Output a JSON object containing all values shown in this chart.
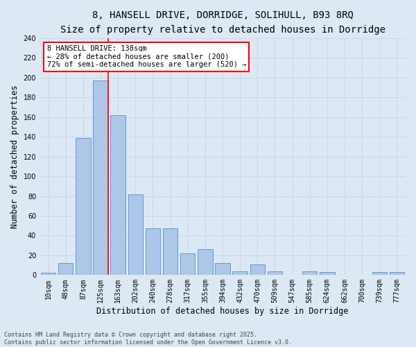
{
  "title1": "8, HANSELL DRIVE, DORRIDGE, SOLIHULL, B93 8RQ",
  "title2": "Size of property relative to detached houses in Dorridge",
  "xlabel": "Distribution of detached houses by size in Dorridge",
  "ylabel": "Number of detached properties",
  "categories": [
    "10sqm",
    "48sqm",
    "87sqm",
    "125sqm",
    "163sqm",
    "202sqm",
    "240sqm",
    "278sqm",
    "317sqm",
    "355sqm",
    "394sqm",
    "432sqm",
    "470sqm",
    "509sqm",
    "547sqm",
    "585sqm",
    "624sqm",
    "662sqm",
    "700sqm",
    "739sqm",
    "777sqm"
  ],
  "values": [
    2,
    12,
    139,
    197,
    162,
    82,
    47,
    47,
    22,
    26,
    12,
    4,
    11,
    4,
    0,
    4,
    3,
    0,
    0,
    3,
    3
  ],
  "bar_color": "#aec6e8",
  "bar_edge_color": "#6699cc",
  "grid_color": "#c8d8ec",
  "background_color": "#dde8f5",
  "vline_x": 3.42,
  "vline_color": "red",
  "annotation_text": "8 HANSELL DRIVE: 138sqm\n← 28% of detached houses are smaller (200)\n72% of semi-detached houses are larger (520) →",
  "annotation_box_color": "white",
  "annotation_box_edge": "red",
  "ylim": [
    0,
    240
  ],
  "yticks": [
    0,
    20,
    40,
    60,
    80,
    100,
    120,
    140,
    160,
    180,
    200,
    220,
    240
  ],
  "footer": "Contains HM Land Registry data © Crown copyright and database right 2025.\nContains public sector information licensed under the Open Government Licence v3.0.",
  "title_fontsize": 10,
  "subtitle_fontsize": 9.5,
  "tick_fontsize": 7,
  "label_fontsize": 8.5,
  "annotation_fontsize": 7.5,
  "footer_fontsize": 6
}
